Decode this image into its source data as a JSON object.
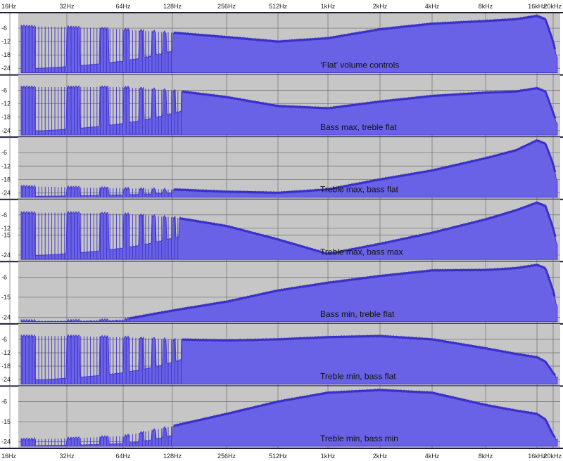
{
  "chart_data": {
    "type": "area",
    "xscale": "log",
    "xlim_hz": [
      16,
      22000
    ],
    "x_tick_labels": [
      {
        "hz": 16,
        "label": "16Hz"
      },
      {
        "hz": 32,
        "label": "32Hz"
      },
      {
        "hz": 64,
        "label": "64Hz"
      },
      {
        "hz": 128,
        "label": "128Hz"
      },
      {
        "hz": 256,
        "label": "256Hz"
      },
      {
        "hz": 512,
        "label": "512Hz"
      },
      {
        "hz": 1000,
        "label": "1kHz"
      },
      {
        "hz": 2000,
        "label": "2kHz"
      },
      {
        "hz": 4000,
        "label": "4kHz"
      },
      {
        "hz": 8000,
        "label": "8kHz"
      },
      {
        "hz": 16000,
        "label": "16kHz"
      },
      {
        "hz": 20000,
        "label": "20kHz"
      }
    ],
    "colors": {
      "fill": "#6a62e6",
      "edge": "#3b2fc9",
      "background": "#c6c6c6",
      "grid": "#6e6e6e",
      "separator": "#1e1e3c"
    },
    "panels": [
      {
        "label": "‘Flat’ volume controls",
        "y_tick_labels": [
          "-6",
          "-12",
          "-18",
          "-24"
        ],
        "ylim": [
          -26,
          0
        ],
        "comb_below_hz": 130,
        "envelope": [
          [
            16,
            -5
          ],
          [
            32,
            -5.5
          ],
          [
            64,
            -6.5
          ],
          [
            128,
            -8
          ],
          [
            256,
            -10
          ],
          [
            512,
            -12
          ],
          [
            1000,
            -10.5
          ],
          [
            2000,
            -6.5
          ],
          [
            4000,
            -4
          ],
          [
            8000,
            -2.8
          ],
          [
            12000,
            -2
          ],
          [
            16000,
            -0.5
          ],
          [
            18000,
            -2
          ],
          [
            20000,
            -12
          ],
          [
            22000,
            -25
          ]
        ]
      },
      {
        "label": "Bass max, treble flat",
        "y_tick_labels": [
          "-6",
          "-12",
          "-18",
          "-24"
        ],
        "ylim": [
          -26,
          0
        ],
        "comb_below_hz": 145,
        "envelope": [
          [
            16,
            -4.5
          ],
          [
            32,
            -4.5
          ],
          [
            64,
            -4.5
          ],
          [
            128,
            -6
          ],
          [
            256,
            -9
          ],
          [
            512,
            -13
          ],
          [
            1000,
            -14
          ],
          [
            2000,
            -11
          ],
          [
            4000,
            -8.5
          ],
          [
            8000,
            -7
          ],
          [
            12000,
            -6.5
          ],
          [
            16000,
            -5
          ],
          [
            18000,
            -6.5
          ],
          [
            20000,
            -16
          ],
          [
            22000,
            -25
          ]
        ]
      },
      {
        "label": "Treble max, bass flat",
        "y_tick_labels": [
          "-6",
          "-12",
          "-18",
          "-24"
        ],
        "ylim": [
          -26,
          0
        ],
        "comb_below_hz": 130,
        "envelope": [
          [
            16,
            -21
          ],
          [
            32,
            -21.5
          ],
          [
            64,
            -22
          ],
          [
            128,
            -22.5
          ],
          [
            256,
            -23.5
          ],
          [
            512,
            -24
          ],
          [
            1000,
            -22.5
          ],
          [
            2000,
            -18
          ],
          [
            4000,
            -14
          ],
          [
            8000,
            -8.5
          ],
          [
            12000,
            -5
          ],
          [
            16000,
            -0.5
          ],
          [
            18000,
            -2
          ],
          [
            20000,
            -11
          ],
          [
            22000,
            -25
          ]
        ]
      },
      {
        "label": "Treble max, bass max",
        "y_tick_labels": [
          "-6",
          "-12",
          "-15",
          "-24"
        ],
        "ylim": [
          -26,
          0
        ],
        "comb_below_hz": 140,
        "envelope": [
          [
            16,
            -5
          ],
          [
            32,
            -5
          ],
          [
            64,
            -5.5
          ],
          [
            128,
            -7
          ],
          [
            256,
            -11
          ],
          [
            512,
            -17
          ],
          [
            1000,
            -23.5
          ],
          [
            2000,
            -19
          ],
          [
            4000,
            -14
          ],
          [
            8000,
            -8
          ],
          [
            12000,
            -4
          ],
          [
            16000,
            -0.5
          ],
          [
            18000,
            -2
          ],
          [
            20000,
            -12
          ],
          [
            22000,
            -25
          ]
        ]
      },
      {
        "label": "Bass min, treble flat",
        "y_tick_labels": [
          "-6",
          "-15",
          "-24"
        ],
        "ylim": [
          -26,
          0
        ],
        "comb_below_hz": 70,
        "envelope": [
          [
            16,
            -25.5
          ],
          [
            32,
            -25.5
          ],
          [
            64,
            -25
          ],
          [
            128,
            -21
          ],
          [
            256,
            -17
          ],
          [
            512,
            -12
          ],
          [
            1000,
            -8.5
          ],
          [
            2000,
            -5.5
          ],
          [
            4000,
            -3
          ],
          [
            8000,
            -2.8
          ],
          [
            12000,
            -2
          ],
          [
            16000,
            -0.5
          ],
          [
            18000,
            -2
          ],
          [
            20000,
            -12
          ],
          [
            22000,
            -25
          ]
        ]
      },
      {
        "label": "Treble min, bass flat",
        "y_tick_labels": [
          "-6",
          "-12",
          "-18",
          "-24"
        ],
        "ylim": [
          -26,
          0
        ],
        "comb_below_hz": 145,
        "envelope": [
          [
            16,
            -4.5
          ],
          [
            32,
            -4.5
          ],
          [
            64,
            -5
          ],
          [
            128,
            -6
          ],
          [
            256,
            -6.5
          ],
          [
            512,
            -6
          ],
          [
            1000,
            -5
          ],
          [
            2000,
            -4.5
          ],
          [
            4000,
            -6
          ],
          [
            8000,
            -10
          ],
          [
            12000,
            -12.5
          ],
          [
            16000,
            -14
          ],
          [
            18000,
            -16
          ],
          [
            20000,
            -21
          ],
          [
            22000,
            -25
          ]
        ]
      },
      {
        "label": "Treble min, bass min",
        "y_tick_labels": [
          "-6",
          "-15",
          "-24"
        ],
        "ylim": [
          -26,
          0
        ],
        "comb_below_hz": 130,
        "envelope": [
          [
            16,
            -23
          ],
          [
            32,
            -22.5
          ],
          [
            64,
            -21.5
          ],
          [
            128,
            -17
          ],
          [
            256,
            -11.5
          ],
          [
            512,
            -6
          ],
          [
            1000,
            -2
          ],
          [
            2000,
            -0.8
          ],
          [
            4000,
            -2
          ],
          [
            8000,
            -7.5
          ],
          [
            12000,
            -10
          ],
          [
            16000,
            -11.5
          ],
          [
            18000,
            -14
          ],
          [
            20000,
            -21
          ],
          [
            22000,
            -25
          ]
        ]
      }
    ]
  }
}
